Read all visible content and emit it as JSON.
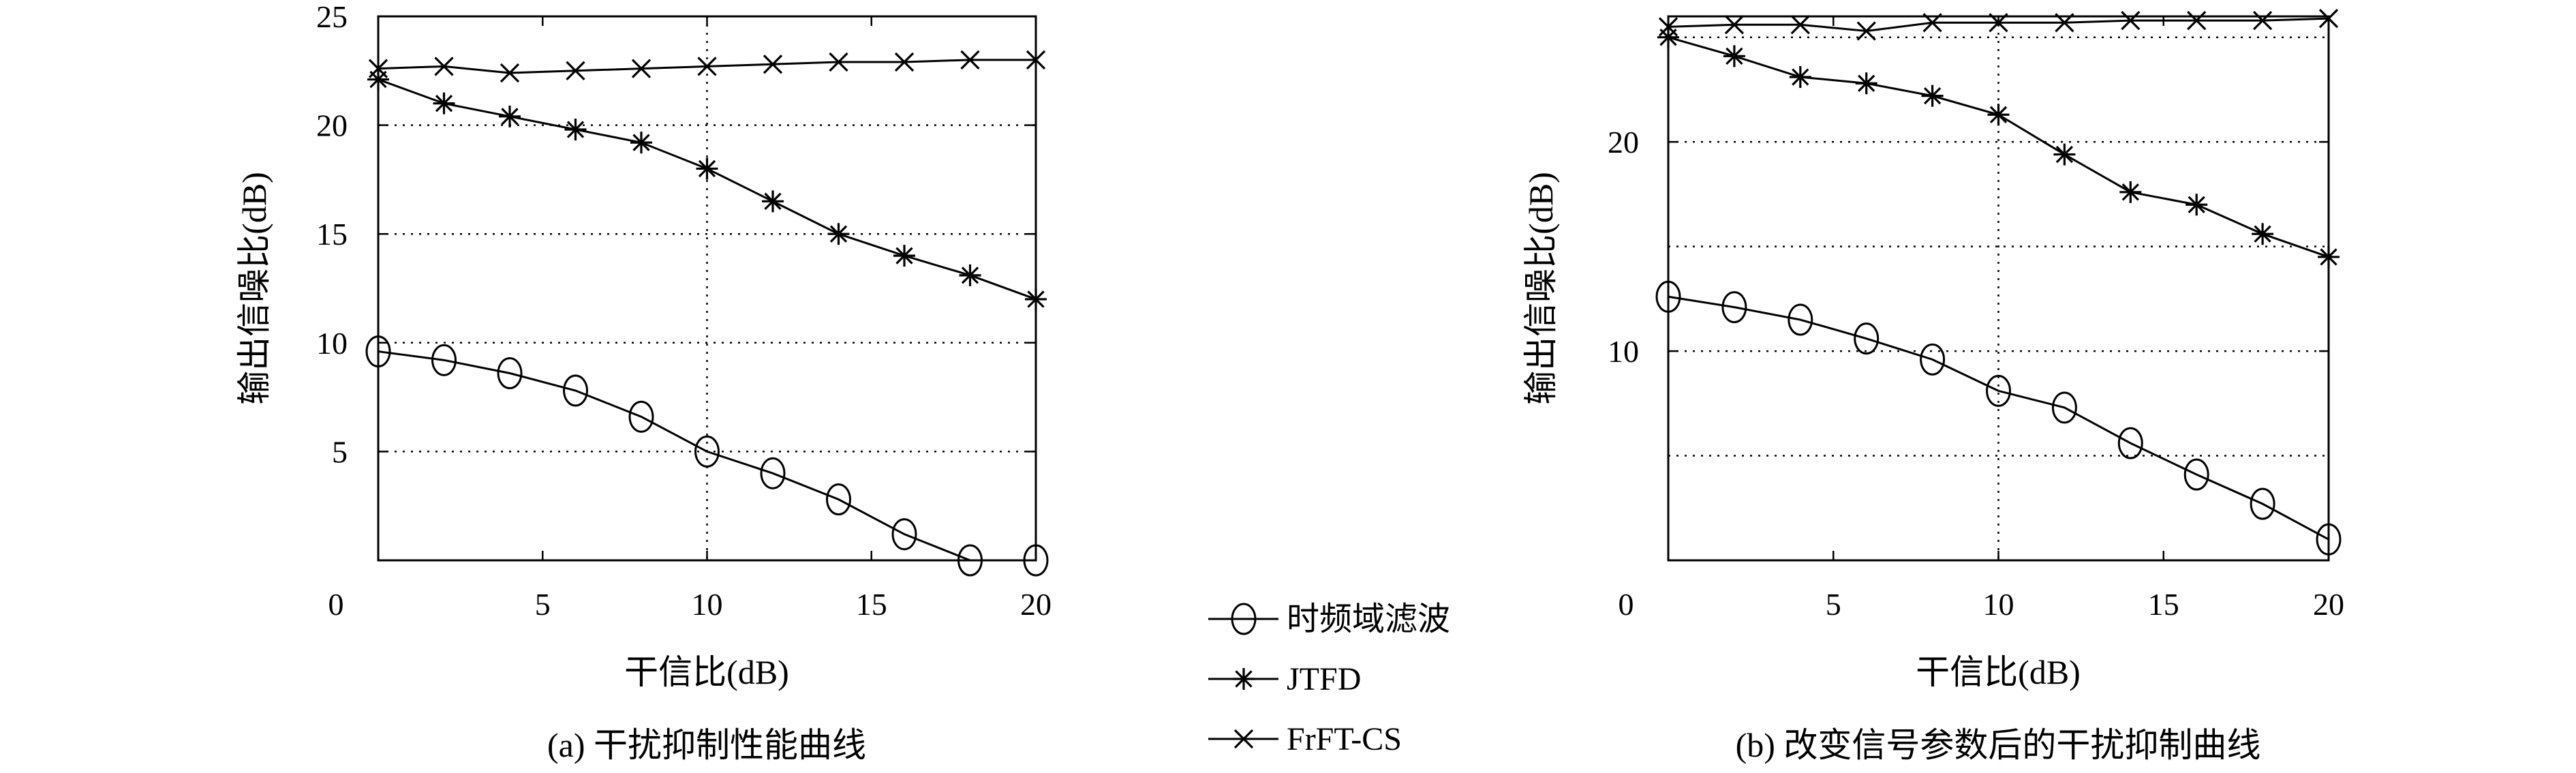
{
  "chart_data": [
    {
      "type": "line",
      "caption": "(a) 干扰抑制性能曲线",
      "xlabel": "干信比(dB)",
      "ylabel": "输出信噪比(dB)",
      "xlim": [
        0,
        20
      ],
      "ylim": [
        0,
        25
      ],
      "xticks": [
        "0",
        "5",
        "10",
        "15",
        "20"
      ],
      "yticks": [
        "5",
        "10",
        "15",
        "20",
        "25"
      ],
      "grid": "dotted",
      "x": [
        0,
        2,
        4,
        6,
        8,
        10,
        12,
        14,
        16,
        18,
        20
      ],
      "series": [
        {
          "name": "时频域滤波",
          "marker": "circle",
          "values": [
            9.6,
            9.2,
            8.6,
            7.8,
            6.6,
            5.0,
            4.0,
            2.8,
            1.2,
            0.0,
            0.0
          ]
        },
        {
          "name": "JTFD",
          "marker": "asterisk",
          "values": [
            22.1,
            21.0,
            20.4,
            19.8,
            19.2,
            18.0,
            16.5,
            15.0,
            14.0,
            13.1,
            12.0
          ]
        },
        {
          "name": "FrFT-CS",
          "marker": "x",
          "values": [
            22.6,
            22.7,
            22.4,
            22.5,
            22.6,
            22.7,
            22.8,
            22.9,
            22.9,
            23.0,
            23.0
          ]
        }
      ]
    },
    {
      "type": "line",
      "caption": "(b) 改变信号参数后的干扰抑制曲线",
      "xlabel": "干信比(dB)",
      "ylabel": "输出信噪比(dB)",
      "xlim": [
        0,
        20
      ],
      "ylim": [
        0,
        26
      ],
      "xticks": [
        "0",
        "5",
        "10",
        "15",
        "20"
      ],
      "yticks": [
        "10",
        "20"
      ],
      "grid": "dotted",
      "x": [
        0,
        2,
        4,
        6,
        8,
        10,
        12,
        14,
        16,
        18,
        20
      ],
      "series": [
        {
          "name": "时频域滤波",
          "marker": "circle",
          "values": [
            12.6,
            12.1,
            11.5,
            10.6,
            9.6,
            8.1,
            7.3,
            5.6,
            4.1,
            2.7,
            1.0
          ]
        },
        {
          "name": "JTFD",
          "marker": "asterisk",
          "values": [
            25.0,
            24.1,
            23.1,
            22.8,
            22.2,
            21.3,
            19.4,
            17.6,
            17.0,
            15.6,
            14.5
          ]
        },
        {
          "name": "FrFT-CS",
          "marker": "x",
          "values": [
            25.5,
            25.6,
            25.6,
            25.3,
            25.7,
            25.7,
            25.7,
            25.8,
            25.8,
            25.8,
            25.9
          ]
        }
      ]
    }
  ],
  "legend": {
    "placement": "bottom-center",
    "entries": [
      {
        "label": "时频域滤波",
        "marker": "circle"
      },
      {
        "label": "JTFD",
        "marker": "asterisk"
      },
      {
        "label": "FrFT-CS",
        "marker": "x"
      }
    ]
  }
}
